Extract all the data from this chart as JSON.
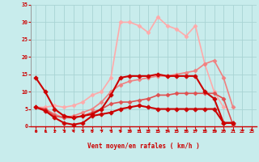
{
  "bg_color": "#c8ecec",
  "grid_color": "#a8d4d4",
  "xlabel": "Vent moyen/en rafales ( km/h )",
  "x": [
    0,
    1,
    2,
    3,
    4,
    5,
    6,
    7,
    8,
    9,
    10,
    11,
    12,
    13,
    14,
    15,
    16,
    17,
    18,
    19,
    20,
    21,
    22,
    23
  ],
  "ylim": [
    0,
    35
  ],
  "yticks": [
    0,
    5,
    10,
    15,
    20,
    25,
    30,
    35
  ],
  "lines": [
    {
      "label": "line1_dark_plus",
      "y": [
        14,
        10,
        5,
        3,
        2.5,
        3,
        3.5,
        5,
        9,
        14,
        14.5,
        14.5,
        14.5,
        15,
        14.5,
        14.5,
        14.5,
        14.5,
        10,
        8,
        1,
        1,
        null,
        null
      ],
      "color": "#cc0000",
      "lw": 1.5,
      "marker": "P",
      "ms": 3.5,
      "mfc": "#cc0000",
      "zorder": 6
    },
    {
      "label": "line2_dark_plus",
      "y": [
        5.5,
        4.5,
        2.5,
        1,
        0.5,
        1,
        3,
        3.5,
        4,
        5,
        5.5,
        6,
        5.5,
        5,
        5,
        5,
        5,
        5,
        5,
        5,
        1,
        1,
        null,
        null
      ],
      "color": "#cc0000",
      "lw": 1.5,
      "marker": "P",
      "ms": 3.5,
      "mfc": "#cc0000",
      "zorder": 6
    },
    {
      "label": "line3_mid_diamond",
      "y": [
        5.5,
        5,
        3,
        2.5,
        2.5,
        3,
        4,
        5,
        6.5,
        7,
        7,
        7.5,
        8,
        9,
        9,
        9.5,
        9.5,
        9.5,
        9.5,
        9.5,
        8,
        0.5,
        null,
        null
      ],
      "color": "#e05050",
      "lw": 1.2,
      "marker": "D",
      "ms": 2.5,
      "mfc": "#e05050",
      "zorder": 5
    },
    {
      "label": "line4_light_diamond",
      "y": [
        5.5,
        5,
        3.5,
        2.5,
        3,
        4,
        5,
        7,
        10,
        12,
        13,
        13.5,
        14,
        14.5,
        14.5,
        15,
        15.5,
        16,
        18,
        19,
        14,
        5.5,
        null,
        null
      ],
      "color": "#f08080",
      "lw": 1.2,
      "marker": "D",
      "ms": 2.5,
      "mfc": "#f08080",
      "zorder": 4
    },
    {
      "label": "line5_lightest_diamond",
      "y": [
        5.5,
        5.5,
        6,
        5.5,
        6,
        7,
        9,
        10,
        14,
        30,
        30,
        29,
        27,
        31.5,
        29,
        28,
        26,
        29,
        18,
        10,
        5.5,
        null,
        null,
        null
      ],
      "color": "#ffaaaa",
      "lw": 1.2,
      "marker": "D",
      "ms": 2.5,
      "mfc": "#ffaaaa",
      "zorder": 3
    }
  ],
  "arrow_angles_deg": [
    190,
    200,
    215,
    235,
    245,
    250,
    255,
    260,
    265,
    268,
    272,
    275,
    278,
    280,
    282,
    284,
    285,
    287,
    290,
    295,
    300,
    310,
    325,
    340
  ]
}
